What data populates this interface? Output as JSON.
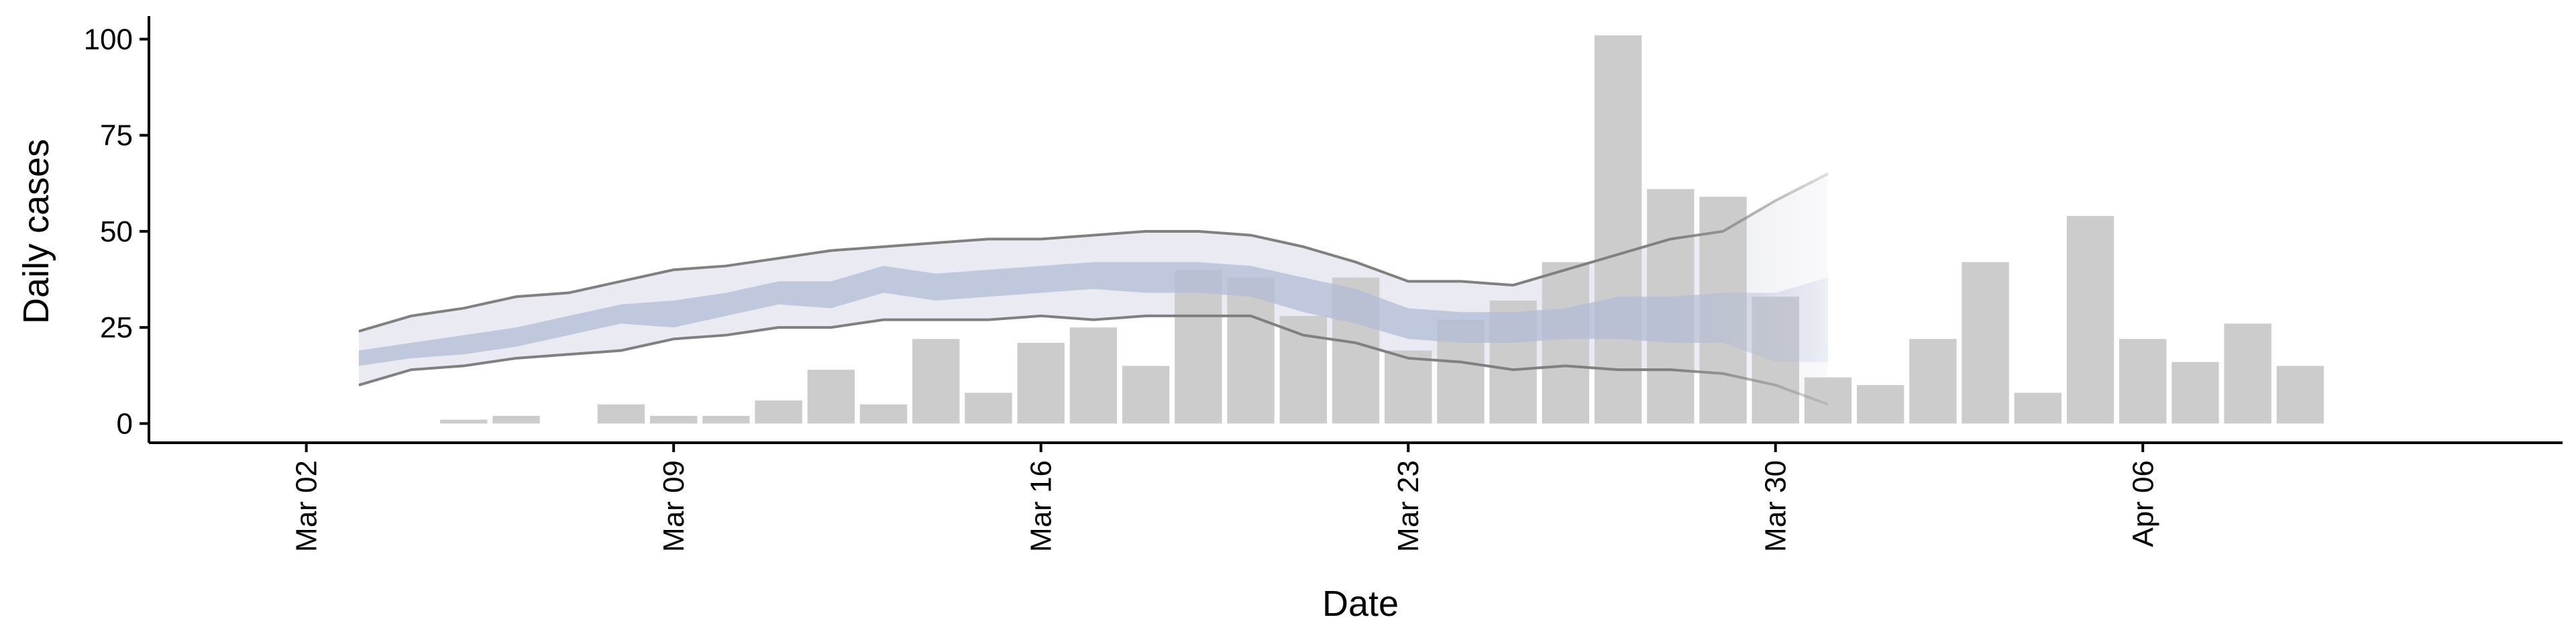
{
  "chart_data": {
    "type": "bar",
    "xlabel": "Date",
    "ylabel": "Daily cases",
    "x_range": [
      "2020-02-28",
      "2020-04-14"
    ],
    "ylim": [
      -5,
      106
    ],
    "y_ticks": [
      0,
      25,
      50,
      75,
      100
    ],
    "x_ticks": [
      {
        "date": "2020-03-02",
        "label": "Mar 02"
      },
      {
        "date": "2020-03-09",
        "label": "Mar 09"
      },
      {
        "date": "2020-03-16",
        "label": "Mar 16"
      },
      {
        "date": "2020-03-23",
        "label": "Mar 23"
      },
      {
        "date": "2020-03-30",
        "label": "Mar 30"
      },
      {
        "date": "2020-04-06",
        "label": "Apr 06"
      }
    ],
    "grid": false,
    "colors": {
      "bars": "#cccccc",
      "outer_band": "#e9eaf2",
      "inner_band": "#b3bcd6",
      "bound_lines": "#808080"
    },
    "bars": [
      {
        "date": "2020-03-05",
        "value": 1
      },
      {
        "date": "2020-03-06",
        "value": 2
      },
      {
        "date": "2020-03-08",
        "value": 5
      },
      {
        "date": "2020-03-09",
        "value": 2
      },
      {
        "date": "2020-03-10",
        "value": 2
      },
      {
        "date": "2020-03-11",
        "value": 6
      },
      {
        "date": "2020-03-12",
        "value": 14
      },
      {
        "date": "2020-03-13",
        "value": 5
      },
      {
        "date": "2020-03-14",
        "value": 22
      },
      {
        "date": "2020-03-15",
        "value": 8
      },
      {
        "date": "2020-03-16",
        "value": 21
      },
      {
        "date": "2020-03-17",
        "value": 25
      },
      {
        "date": "2020-03-18",
        "value": 15
      },
      {
        "date": "2020-03-19",
        "value": 40
      },
      {
        "date": "2020-03-20",
        "value": 38
      },
      {
        "date": "2020-03-21",
        "value": 28
      },
      {
        "date": "2020-03-22",
        "value": 38
      },
      {
        "date": "2020-03-23",
        "value": 19
      },
      {
        "date": "2020-03-24",
        "value": 27
      },
      {
        "date": "2020-03-25",
        "value": 32
      },
      {
        "date": "2020-03-26",
        "value": 42
      },
      {
        "date": "2020-03-27",
        "value": 101
      },
      {
        "date": "2020-03-28",
        "value": 61
      },
      {
        "date": "2020-03-29",
        "value": 59
      },
      {
        "date": "2020-03-30",
        "value": 33
      },
      {
        "date": "2020-03-31",
        "value": 12
      },
      {
        "date": "2020-04-01",
        "value": 10
      },
      {
        "date": "2020-04-02",
        "value": 22
      },
      {
        "date": "2020-04-03",
        "value": 42
      },
      {
        "date": "2020-04-04",
        "value": 8
      },
      {
        "date": "2020-04-05",
        "value": 54
      },
      {
        "date": "2020-04-06",
        "value": 22
      },
      {
        "date": "2020-04-07",
        "value": 16
      },
      {
        "date": "2020-04-08",
        "value": 26
      },
      {
        "date": "2020-04-09",
        "value": 15
      }
    ],
    "estimate": {
      "dates": [
        "2020-03-03",
        "2020-03-04",
        "2020-03-05",
        "2020-03-06",
        "2020-03-07",
        "2020-03-08",
        "2020-03-09",
        "2020-03-10",
        "2020-03-11",
        "2020-03-12",
        "2020-03-13",
        "2020-03-14",
        "2020-03-15",
        "2020-03-16",
        "2020-03-17",
        "2020-03-18",
        "2020-03-19",
        "2020-03-20",
        "2020-03-21",
        "2020-03-22",
        "2020-03-23",
        "2020-03-24",
        "2020-03-25",
        "2020-03-26",
        "2020-03-27",
        "2020-03-28",
        "2020-03-29",
        "2020-03-30",
        "2020-03-31"
      ],
      "outer_upper": [
        24,
        28,
        30,
        33,
        34,
        37,
        40,
        41,
        43,
        45,
        46,
        47,
        48,
        48,
        49,
        50,
        50,
        49,
        46,
        42,
        37,
        37,
        36,
        40,
        44,
        48,
        50,
        58,
        65
      ],
      "inner_upper": [
        19,
        21,
        23,
        25,
        28,
        31,
        32,
        34,
        37,
        37,
        41,
        39,
        40,
        41,
        42,
        42,
        42,
        41,
        38,
        35,
        30,
        29,
        29,
        30,
        33,
        33,
        34,
        34,
        38
      ],
      "inner_lower": [
        15,
        17,
        18,
        20,
        23,
        26,
        25,
        28,
        31,
        30,
        34,
        32,
        33,
        34,
        35,
        34,
        34,
        33,
        29,
        26,
        22,
        21,
        21,
        22,
        22,
        21,
        21,
        16,
        16
      ],
      "outer_lower": [
        10,
        14,
        15,
        17,
        18,
        19,
        22,
        23,
        25,
        25,
        27,
        27,
        27,
        28,
        27,
        28,
        28,
        28,
        23,
        21,
        17,
        16,
        14,
        15,
        14,
        14,
        13,
        10,
        5
      ]
    }
  }
}
